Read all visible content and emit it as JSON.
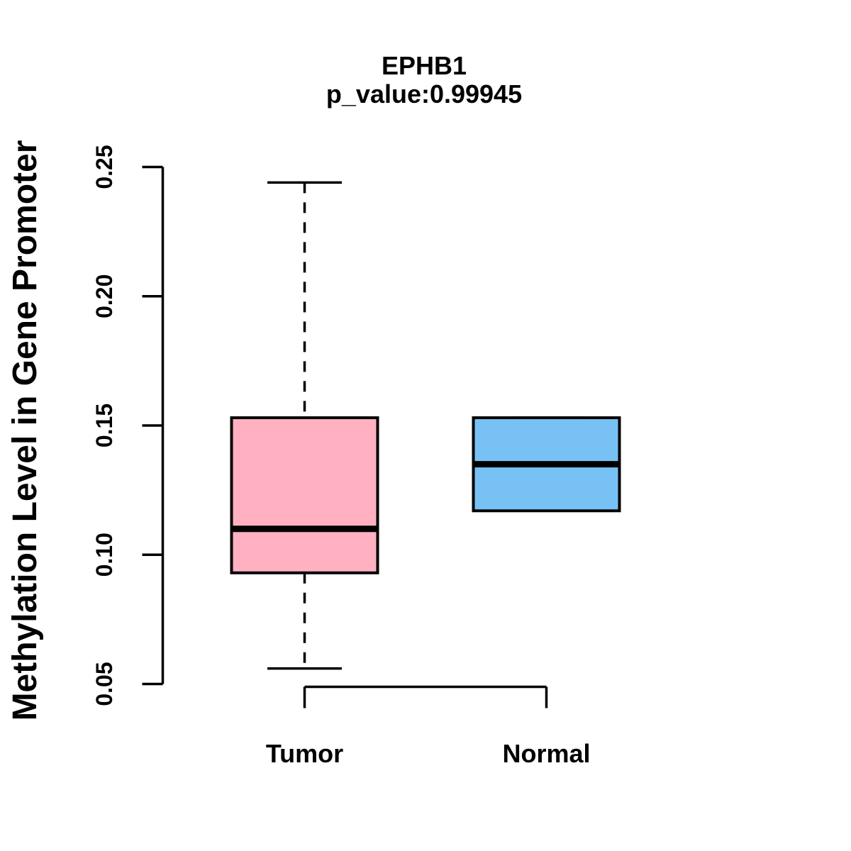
{
  "chart_data": {
    "type": "boxplot",
    "title": "EPHB1",
    "subtitle": "p_value:0.99945",
    "ylabel": "Methylation Level in Gene Promoter",
    "xlabel": "",
    "categories": [
      "Tumor",
      "Normal"
    ],
    "ylim": [
      0.05,
      0.25
    ],
    "y_ticks": [
      "0.05",
      "0.10",
      "0.15",
      "0.20",
      "0.25"
    ],
    "grid": false,
    "legend_position": "none",
    "series": [
      {
        "name": "Tumor",
        "fill_color": "#FFB1C1",
        "whisker_low": 0.056,
        "q1": 0.093,
        "median": 0.11,
        "q3": 0.153,
        "whisker_high": 0.244,
        "outliers": []
      },
      {
        "name": "Normal",
        "fill_color": "#78C1F5",
        "whisker_low": 0.117,
        "q1": 0.117,
        "median": 0.135,
        "q3": 0.153,
        "whisker_high": 0.153,
        "outliers": []
      }
    ],
    "colors": {
      "stroke": "#000000",
      "text": "#000000",
      "background": "#FFFFFF"
    }
  }
}
